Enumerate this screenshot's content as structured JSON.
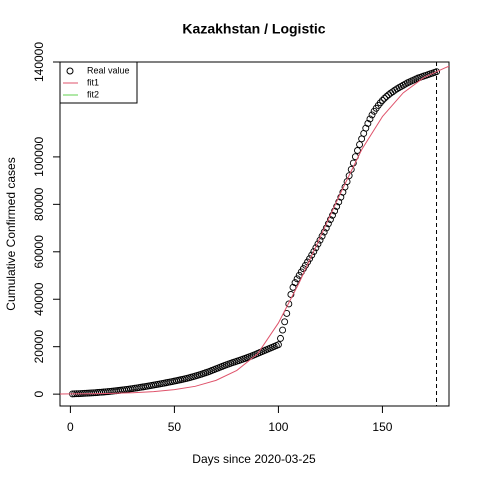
{
  "chart_data": {
    "type": "scatter",
    "title": "Kazakhstan / Logistic",
    "x_label": "Days since 2020-03-25",
    "y_label": "Cumulative Confirmed cases",
    "xlim": [
      -5,
      182
    ],
    "ylim": [
      -5000,
      140000
    ],
    "xticks": [
      0,
      50,
      100,
      150
    ],
    "yticks": [
      0,
      20000,
      40000,
      60000,
      80000,
      100000,
      140000
    ],
    "vline": 176,
    "legend": "top-left",
    "series": [
      {
        "name": "Real value",
        "color": "#000000",
        "x": [
          1,
          2,
          3,
          4,
          5,
          6,
          7,
          8,
          9,
          10,
          11,
          12,
          13,
          14,
          15,
          16,
          17,
          18,
          19,
          20,
          21,
          22,
          23,
          24,
          25,
          26,
          27,
          28,
          29,
          30,
          31,
          32,
          33,
          34,
          35,
          36,
          37,
          38,
          39,
          40,
          41,
          42,
          43,
          44,
          45,
          46,
          47,
          48,
          49,
          50,
          51,
          52,
          53,
          54,
          55,
          56,
          57,
          58,
          59,
          60,
          61,
          62,
          63,
          64,
          65,
          66,
          67,
          68,
          69,
          70,
          71,
          72,
          73,
          74,
          75,
          76,
          77,
          78,
          79,
          80,
          81,
          82,
          83,
          84,
          85,
          86,
          87,
          88,
          89,
          90,
          91,
          92,
          93,
          94,
          95,
          96,
          97,
          98,
          99,
          100,
          101,
          102,
          103,
          104,
          105,
          106,
          107,
          108,
          109,
          110,
          111,
          112,
          113,
          114,
          115,
          116,
          117,
          118,
          119,
          120,
          121,
          122,
          123,
          124,
          125,
          126,
          127,
          128,
          129,
          130,
          131,
          132,
          133,
          134,
          135,
          136,
          137,
          138,
          139,
          140,
          141,
          142,
          143,
          144,
          145,
          146,
          147,
          148,
          149,
          150,
          151,
          152,
          153,
          154,
          155,
          156,
          157,
          158,
          159,
          160,
          161,
          162,
          163,
          164,
          165,
          166,
          167,
          168,
          169,
          170,
          171,
          172,
          173,
          174,
          175,
          176
        ],
        "values": [
          100,
          130,
          170,
          210,
          260,
          300,
          350,
          400,
          450,
          500,
          560,
          620,
          690,
          760,
          830,
          900,
          980,
          1060,
          1150,
          1240,
          1330,
          1430,
          1530,
          1640,
          1750,
          1860,
          1980,
          2100,
          2230,
          2360,
          2490,
          2630,
          2770,
          2910,
          3060,
          3210,
          3360,
          3510,
          3670,
          3830,
          3990,
          4150,
          4310,
          4470,
          4630,
          4800,
          4970,
          5140,
          5320,
          5500,
          5680,
          5870,
          6060,
          6260,
          6460,
          6670,
          6890,
          7120,
          7360,
          7610,
          7870,
          8140,
          8420,
          8710,
          9010,
          9320,
          9640,
          9970,
          10310,
          10660,
          11010,
          11360,
          11700,
          12040,
          12370,
          12690,
          13000,
          13300,
          13590,
          13880,
          14170,
          14460,
          14760,
          15070,
          15390,
          15720,
          16060,
          16410,
          16770,
          17140,
          17510,
          17880,
          18250,
          18620,
          18990,
          19360,
          19730,
          20100,
          20470,
          20850,
          23500,
          27000,
          30500,
          34000,
          38000,
          42000,
          45000,
          47000,
          48600,
          50100,
          51500,
          52900,
          54300,
          55700,
          57100,
          58600,
          60100,
          61700,
          63300,
          64900,
          66600,
          68300,
          70000,
          71800,
          73600,
          75400,
          77200,
          79100,
          81000,
          83000,
          85100,
          87300,
          89600,
          92100,
          94700,
          97400,
          100100,
          102700,
          105200,
          107600,
          109900,
          112100,
          114100,
          116000,
          117700,
          119200,
          120500,
          121700,
          122800,
          123800,
          124700,
          125500,
          126200,
          126900,
          127500,
          128100,
          128700,
          129200,
          129700,
          130200,
          130700,
          131200,
          131600,
          132000,
          132400,
          132800,
          133200,
          133500,
          133800,
          134100,
          134400,
          134700,
          135000,
          135300,
          135600,
          135900
        ]
      },
      {
        "name": "fit1",
        "color": "#df536b",
        "x": [
          -5,
          0,
          10,
          20,
          30,
          40,
          50,
          60,
          70,
          80,
          90,
          100,
          110,
          120,
          130,
          140,
          150,
          160,
          170,
          180,
          182
        ],
        "values": [
          75,
          100,
          180,
          330,
          600,
          1050,
          1900,
          3300,
          5800,
          10000,
          17000,
          30000,
          47000,
          66000,
          85000,
          103000,
          117000,
          127000,
          133500,
          137500,
          138200
        ]
      },
      {
        "name": "fit2",
        "color": "#61d04f"
      }
    ]
  }
}
